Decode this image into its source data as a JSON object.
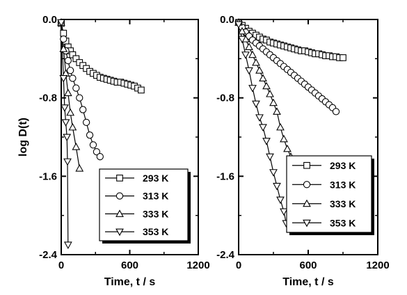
{
  "chart_data": [
    {
      "type": "scatter",
      "xlabel": "Time, t / s",
      "ylabel": "log D(t)",
      "xlim": [
        0,
        1200
      ],
      "ylim": [
        -2.4,
        0.0
      ],
      "xticks": [
        0,
        600,
        1200
      ],
      "yticks": [
        0.0,
        -0.8,
        -1.6,
        -2.4
      ],
      "xtick_labels": [
        "0",
        "600",
        "1200"
      ],
      "ytick_labels": [
        "0.0",
        "-0.8",
        "-1.6",
        "-2.4"
      ],
      "grid": false,
      "legend_position": "bottom-right",
      "series": [
        {
          "name": "293 K",
          "marker": "square",
          "x": [
            0,
            20,
            40,
            60,
            80,
            100,
            130,
            160,
            190,
            220,
            250,
            280,
            310,
            340,
            370,
            400,
            430,
            460,
            490,
            520,
            550,
            580,
            610,
            640,
            670,
            700
          ],
          "y": [
            -0.04,
            -0.14,
            -0.22,
            -0.28,
            -0.32,
            -0.36,
            -0.4,
            -0.44,
            -0.47,
            -0.5,
            -0.53,
            -0.55,
            -0.57,
            -0.59,
            -0.6,
            -0.61,
            -0.62,
            -0.63,
            -0.64,
            -0.64,
            -0.65,
            -0.66,
            -0.67,
            -0.68,
            -0.7,
            -0.72
          ]
        },
        {
          "name": "313 K",
          "marker": "circle",
          "x": [
            0,
            20,
            40,
            60,
            80,
            100,
            130,
            160,
            190,
            220,
            250,
            280,
            310,
            340
          ],
          "y": [
            -0.03,
            -0.2,
            -0.32,
            -0.42,
            -0.52,
            -0.6,
            -0.7,
            -0.8,
            -0.92,
            -1.05,
            -1.18,
            -1.28,
            -1.35,
            -1.4
          ]
        },
        {
          "name": "333 K",
          "marker": "triangle-up",
          "x": [
            0,
            20,
            40,
            60,
            80,
            100,
            130,
            160
          ],
          "y": [
            -0.03,
            -0.3,
            -0.55,
            -0.75,
            -0.95,
            -1.1,
            -1.3,
            -1.52
          ]
        },
        {
          "name": "353 K",
          "marker": "triangle-down",
          "x": [
            0,
            20,
            30,
            40,
            50,
            55,
            60
          ],
          "y": [
            -0.03,
            -0.6,
            -0.9,
            -1.05,
            -1.2,
            -1.45,
            -2.3
          ]
        }
      ]
    },
    {
      "type": "scatter",
      "xlabel": "Time, t / s",
      "ylabel": "",
      "xlim": [
        0,
        1200
      ],
      "ylim": [
        -2.4,
        0.0
      ],
      "xticks": [
        0,
        600,
        1200
      ],
      "yticks": [
        0.0,
        -0.8,
        -1.6,
        -2.4
      ],
      "xtick_labels": [
        "0",
        "600",
        "1200"
      ],
      "ytick_labels": [
        "0.0",
        "-0.8",
        "-1.6",
        "-2.4"
      ],
      "grid": false,
      "legend_position": "bottom-right",
      "series": [
        {
          "name": "293 K",
          "marker": "square",
          "x": [
            0,
            30,
            60,
            90,
            120,
            150,
            180,
            210,
            240,
            270,
            300,
            330,
            360,
            390,
            420,
            450,
            480,
            510,
            540,
            570,
            600,
            630,
            660,
            690,
            720,
            750,
            780,
            810,
            840,
            870,
            900
          ],
          "y": [
            -0.03,
            -0.06,
            -0.09,
            -0.12,
            -0.14,
            -0.16,
            -0.18,
            -0.2,
            -0.21,
            -0.23,
            -0.24,
            -0.25,
            -0.26,
            -0.27,
            -0.28,
            -0.29,
            -0.3,
            -0.31,
            -0.32,
            -0.32,
            -0.33,
            -0.34,
            -0.35,
            -0.35,
            -0.36,
            -0.37,
            -0.37,
            -0.38,
            -0.38,
            -0.39,
            -0.39
          ]
        },
        {
          "name": "313 K",
          "marker": "circle",
          "x": [
            0,
            30,
            60,
            90,
            120,
            150,
            180,
            210,
            240,
            270,
            300,
            330,
            360,
            390,
            420,
            450,
            480,
            510,
            540,
            570,
            600,
            630,
            660,
            690,
            720,
            750,
            780,
            810,
            840
          ],
          "y": [
            -0.03,
            -0.08,
            -0.13,
            -0.17,
            -0.21,
            -0.24,
            -0.27,
            -0.3,
            -0.33,
            -0.36,
            -0.39,
            -0.42,
            -0.45,
            -0.48,
            -0.51,
            -0.54,
            -0.57,
            -0.6,
            -0.63,
            -0.66,
            -0.69,
            -0.72,
            -0.75,
            -0.78,
            -0.81,
            -0.84,
            -0.87,
            -0.9,
            -0.94
          ]
        },
        {
          "name": "333 K",
          "marker": "triangle-up",
          "x": [
            0,
            30,
            60,
            90,
            120,
            150,
            180,
            210,
            240,
            270,
            300,
            330,
            360,
            390,
            420,
            450
          ],
          "y": [
            -0.03,
            -0.12,
            -0.2,
            -0.28,
            -0.36,
            -0.44,
            -0.52,
            -0.6,
            -0.68,
            -0.76,
            -0.85,
            -0.94,
            -1.1,
            -1.22,
            -1.32,
            -1.4
          ]
        },
        {
          "name": "353 K",
          "marker": "triangle-down",
          "x": [
            0,
            30,
            60,
            90,
            120,
            150,
            180,
            210,
            240,
            270,
            300,
            330,
            360,
            390,
            410
          ],
          "y": [
            -0.05,
            -0.2,
            -0.36,
            -0.52,
            -0.7,
            -0.86,
            -1.0,
            -1.1,
            -1.24,
            -1.4,
            -1.56,
            -1.7,
            -1.84,
            -1.96,
            -2.08
          ]
        }
      ]
    }
  ]
}
